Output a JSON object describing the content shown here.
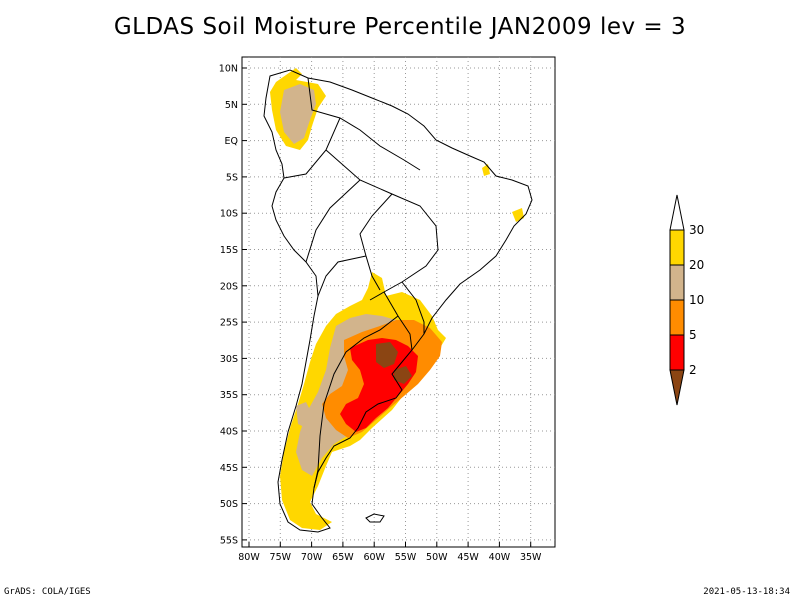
{
  "title": "GLDAS Soil Moisture Percentile JAN2009 lev = 3",
  "map": {
    "lat_labels": [
      "10N",
      "5N",
      "EQ",
      "5S",
      "10S",
      "15S",
      "20S",
      "25S",
      "30S",
      "35S",
      "40S",
      "45S",
      "50S",
      "55S"
    ],
    "lon_labels": [
      "80W",
      "75W",
      "70W",
      "65W",
      "60W",
      "55W",
      "50W",
      "45W",
      "40W",
      "35W"
    ],
    "gridlines": "dotted"
  },
  "colorbar": {
    "levels": [
      "30",
      "20",
      "10",
      "5",
      "2"
    ],
    "bins": [
      {
        "range": "above 30",
        "color": "#ffffff"
      },
      {
        "range": "20-30",
        "color": "#ffd700"
      },
      {
        "range": "10-20",
        "color": "#d2b48c"
      },
      {
        "range": "5-10",
        "color": "#ff8c00"
      },
      {
        "range": "2-5",
        "color": "#ff0000"
      },
      {
        "range": "below 2",
        "color": "#8b4513"
      }
    ]
  },
  "footer": {
    "left": "GrADS: COLA/IGES",
    "right": "2021-05-13-18:34"
  }
}
